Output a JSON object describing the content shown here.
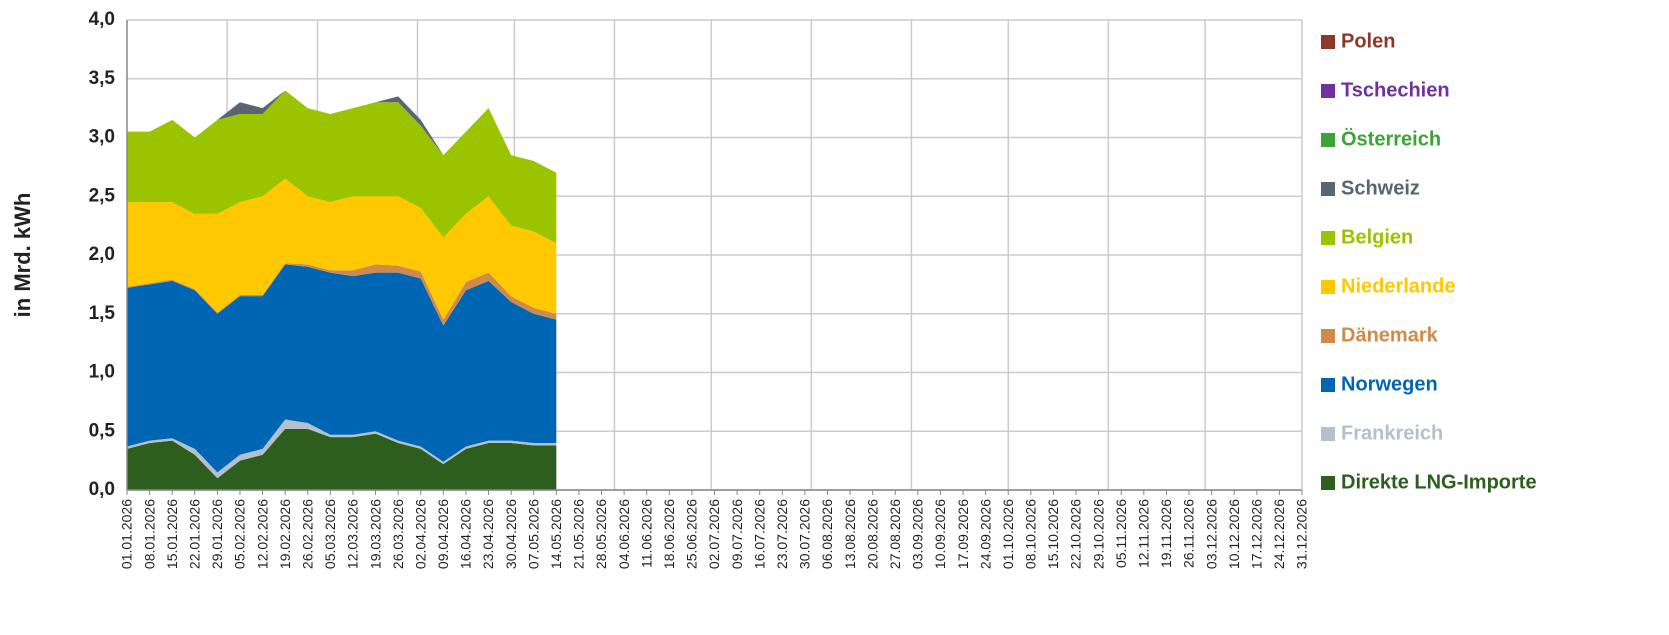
{
  "chart_data": {
    "type": "stacked_area",
    "y_label": "in Mrd. kWh",
    "categories": [
      "01.01.2026",
      "08.01.2026",
      "15.01.2026",
      "22.01.2026",
      "29.01.2026",
      "05.02.2026",
      "12.02.2026",
      "19.02.2026",
      "26.02.2026",
      "05.03.2026",
      "12.03.2026",
      "19.03.2026",
      "26.03.2026",
      "02.04.2026",
      "09.04.2026",
      "16.04.2026",
      "23.04.2026",
      "30.04.2026",
      "07.05.2026",
      "14.05.2026",
      "21.05.2026",
      "28.05.2026",
      "04.06.2026",
      "11.06.2026",
      "18.06.2026",
      "25.06.2026",
      "02.07.2026",
      "09.07.2026",
      "16.07.2026",
      "23.07.2026",
      "30.07.2026",
      "06.08.2026",
      "13.08.2026",
      "20.08.2026",
      "27.08.2026",
      "03.09.2026",
      "10.09.2026",
      "17.09.2026",
      "24.09.2026",
      "01.10.2026",
      "08.10.2026",
      "15.10.2026",
      "22.10.2026",
      "29.10.2026",
      "05.11.2026",
      "12.11.2026",
      "19.11.2026",
      "26.11.2026",
      "03.12.2026",
      "10.12.2026",
      "17.12.2026",
      "24.12.2026",
      "31.12.2026"
    ],
    "series": [
      {
        "name": "Direkte LNG-Importe",
        "color": "#2e5e1e",
        "values": [
          0.35,
          0.4,
          0.42,
          0.3,
          0.1,
          0.25,
          0.3,
          0.52,
          0.52,
          0.45,
          0.45,
          0.48,
          0.4,
          0.35,
          0.22,
          0.35,
          0.4,
          0.4,
          0.38,
          0.38,
          null,
          null,
          null,
          null,
          null,
          null,
          null,
          null,
          null,
          null,
          null,
          null,
          null,
          null,
          null,
          null,
          null,
          null,
          null,
          null,
          null,
          null,
          null,
          null,
          null,
          null,
          null,
          null,
          null,
          null,
          null,
          null,
          null
        ]
      },
      {
        "name": "Frankreich",
        "color": "#b4c0cc",
        "values": [
          0.02,
          0.02,
          0.02,
          0.05,
          0.05,
          0.05,
          0.05,
          0.08,
          0.05,
          0.02,
          0.02,
          0.02,
          0.02,
          0.02,
          0.02,
          0.02,
          0.02,
          0.02,
          0.02,
          0.02,
          null,
          null,
          null,
          null,
          null,
          null,
          null,
          null,
          null,
          null,
          null,
          null,
          null,
          null,
          null,
          null,
          null,
          null,
          null,
          null,
          null,
          null,
          null,
          null,
          null,
          null,
          null,
          null,
          null,
          null,
          null,
          null,
          null
        ]
      },
      {
        "name": "Norwegen",
        "color": "#0066b3",
        "values": [
          1.35,
          1.33,
          1.34,
          1.35,
          1.35,
          1.35,
          1.3,
          1.32,
          1.33,
          1.38,
          1.35,
          1.35,
          1.43,
          1.43,
          1.16,
          1.33,
          1.36,
          1.18,
          1.1,
          1.05,
          null,
          null,
          null,
          null,
          null,
          null,
          null,
          null,
          null,
          null,
          null,
          null,
          null,
          null,
          null,
          null,
          null,
          null,
          null,
          null,
          null,
          null,
          null,
          null,
          null,
          null,
          null,
          null,
          null,
          null,
          null,
          null,
          null
        ]
      },
      {
        "name": "Dänemark",
        "color": "#d08a4a",
        "values": [
          0.01,
          0.01,
          0.01,
          0.01,
          0.01,
          0.01,
          0.01,
          0.01,
          0.02,
          0.02,
          0.05,
          0.07,
          0.06,
          0.06,
          0.05,
          0.07,
          0.07,
          0.05,
          0.05,
          0.05,
          null,
          null,
          null,
          null,
          null,
          null,
          null,
          null,
          null,
          null,
          null,
          null,
          null,
          null,
          null,
          null,
          null,
          null,
          null,
          null,
          null,
          null,
          null,
          null,
          null,
          null,
          null,
          null,
          null,
          null,
          null,
          null,
          null
        ]
      },
      {
        "name": "Niederlande",
        "color": "#ffc800",
        "values": [
          0.72,
          0.69,
          0.66,
          0.64,
          0.84,
          0.79,
          0.84,
          0.72,
          0.58,
          0.58,
          0.63,
          0.58,
          0.59,
          0.54,
          0.7,
          0.58,
          0.65,
          0.6,
          0.65,
          0.6,
          null,
          null,
          null,
          null,
          null,
          null,
          null,
          null,
          null,
          null,
          null,
          null,
          null,
          null,
          null,
          null,
          null,
          null,
          null,
          null,
          null,
          null,
          null,
          null,
          null,
          null,
          null,
          null,
          null,
          null,
          null,
          null,
          null
        ]
      },
      {
        "name": "Belgien",
        "color": "#9bc400",
        "values": [
          0.6,
          0.6,
          0.7,
          0.65,
          0.8,
          0.75,
          0.7,
          0.75,
          0.75,
          0.75,
          0.75,
          0.8,
          0.8,
          0.7,
          0.7,
          0.7,
          0.75,
          0.6,
          0.6,
          0.6,
          null,
          null,
          null,
          null,
          null,
          null,
          null,
          null,
          null,
          null,
          null,
          null,
          null,
          null,
          null,
          null,
          null,
          null,
          null,
          null,
          null,
          null,
          null,
          null,
          null,
          null,
          null,
          null,
          null,
          null,
          null,
          null,
          null
        ]
      },
      {
        "name": "Schweiz",
        "color": "#5a6472",
        "values": [
          0,
          0,
          0,
          0,
          0,
          0.1,
          0.05,
          0,
          0,
          0,
          0,
          0,
          0.05,
          0.05,
          0,
          0,
          0,
          0,
          0,
          0,
          null,
          null,
          null,
          null,
          null,
          null,
          null,
          null,
          null,
          null,
          null,
          null,
          null,
          null,
          null,
          null,
          null,
          null,
          null,
          null,
          null,
          null,
          null,
          null,
          null,
          null,
          null,
          null,
          null,
          null,
          null,
          null,
          null
        ]
      },
      {
        "name": "Österreich",
        "color": "#3aa537",
        "values": [
          0,
          0,
          0,
          0,
          0,
          0,
          0,
          0,
          0,
          0,
          0,
          0,
          0,
          0,
          0,
          0,
          0,
          0,
          0,
          0,
          null,
          null,
          null,
          null,
          null,
          null,
          null,
          null,
          null,
          null,
          null,
          null,
          null,
          null,
          null,
          null,
          null,
          null,
          null,
          null,
          null,
          null,
          null,
          null,
          null,
          null,
          null,
          null,
          null,
          null,
          null,
          null,
          null
        ]
      },
      {
        "name": "Tschechien",
        "color": "#7030a0",
        "values": [
          0,
          0,
          0,
          0,
          0,
          0,
          0,
          0,
          0,
          0,
          0,
          0,
          0,
          0,
          0,
          0,
          0,
          0,
          0,
          0,
          null,
          null,
          null,
          null,
          null,
          null,
          null,
          null,
          null,
          null,
          null,
          null,
          null,
          null,
          null,
          null,
          null,
          null,
          null,
          null,
          null,
          null,
          null,
          null,
          null,
          null,
          null,
          null,
          null,
          null,
          null,
          null,
          null
        ]
      },
      {
        "name": "Polen",
        "color": "#8b3a2a",
        "values": [
          0,
          0,
          0,
          0,
          0,
          0,
          0,
          0,
          0,
          0,
          0,
          0,
          0,
          0,
          0,
          0,
          0,
          0,
          0,
          0,
          null,
          null,
          null,
          null,
          null,
          null,
          null,
          null,
          null,
          null,
          null,
          null,
          null,
          null,
          null,
          null,
          null,
          null,
          null,
          null,
          null,
          null,
          null,
          null,
          null,
          null,
          null,
          null,
          null,
          null,
          null,
          null,
          null
        ]
      }
    ],
    "ylim": [
      0,
      4
    ],
    "yticks": [
      {
        "value": 0,
        "label": "0,0"
      },
      {
        "value": 0.5,
        "label": "0,5"
      },
      {
        "value": 1,
        "label": "1,0"
      },
      {
        "value": 1.5,
        "label": "1,5"
      },
      {
        "value": 2,
        "label": "2,0"
      },
      {
        "value": 2.5,
        "label": "2,5"
      },
      {
        "value": 3,
        "label": "3,0"
      },
      {
        "value": 3.5,
        "label": "3,5"
      },
      {
        "value": 4,
        "label": "4,0"
      }
    ],
    "grid": true,
    "legend": "right"
  }
}
